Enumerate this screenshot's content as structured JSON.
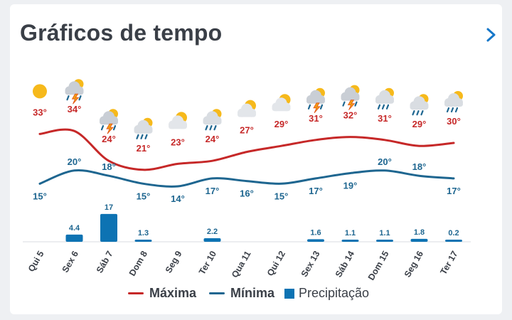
{
  "title": "Gráficos de tempo",
  "colors": {
    "max": "#c62828",
    "min": "#1e6690",
    "precip": "#0d73b3"
  },
  "chart_data": {
    "type": "line",
    "categories": [
      "Qui 5",
      "Sex 6",
      "Sáb 7",
      "Dom 8",
      "Seg 9",
      "Ter 10",
      "Qua 11",
      "Qui 12",
      "Sex 13",
      "Sáb 14",
      "Dom 15",
      "Seg 16",
      "Ter 17"
    ],
    "series": [
      {
        "name": "Máxima",
        "values": [
          33,
          34,
          24,
          21,
          23,
          24,
          27,
          29,
          31,
          32,
          31,
          29,
          30
        ],
        "labels": [
          "33°",
          "34°",
          "24°",
          "21°",
          "23°",
          "24°",
          "27°",
          "29°",
          "31°",
          "32°",
          "31°",
          "29°",
          "30°"
        ]
      },
      {
        "name": "Mínima",
        "values": [
          15,
          20,
          18,
          15,
          14,
          17,
          16,
          15,
          17,
          19,
          20,
          18,
          17
        ],
        "labels": [
          "15°",
          "20°",
          "18°",
          "15°",
          "14°",
          "17°",
          "16°",
          "15°",
          "17°",
          "19°",
          "20°",
          "18°",
          "17°"
        ]
      },
      {
        "name": "Precipitação",
        "type": "bar",
        "values": [
          0,
          4.4,
          17,
          1.3,
          0,
          2.2,
          0,
          0,
          1.6,
          1.1,
          1.1,
          1.8,
          0.2
        ],
        "labels": [
          "",
          "4.4",
          "17",
          "1.3",
          "",
          "2.2",
          "",
          "",
          "1.6",
          "1.1",
          "1.1",
          "1.8",
          "0.2"
        ]
      }
    ],
    "icons": [
      "sun-icon",
      "thunderstorm-icon",
      "thunderstorm-icon",
      "rain-icon",
      "partly-cloudy-icon",
      "rain-icon",
      "partly-cloudy-icon",
      "partly-cloudy-icon",
      "thunderstorm-icon",
      "thunderstorm-icon",
      "rain-icon",
      "rain-icon",
      "rain-icon"
    ]
  },
  "legend": {
    "max": "Máxima",
    "min": "Mínima",
    "precip": "Precipitação"
  }
}
